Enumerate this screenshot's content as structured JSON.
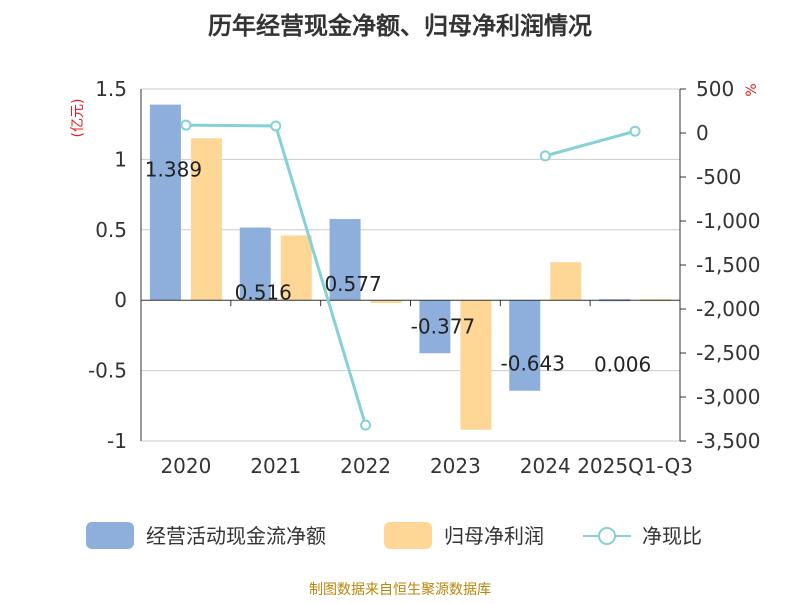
{
  "chart_data": {
    "type": "bar+line",
    "title": "历年经营现金净额、归母净利润情况",
    "categories": [
      "2020",
      "2021",
      "2022",
      "2023",
      "2024",
      "2025Q1-Q3"
    ],
    "left_axis": {
      "unit": "(亿元)",
      "ylim": [
        -1,
        1.5
      ],
      "ticks": [
        1.5,
        1,
        0.5,
        0,
        -0.5,
        -1
      ],
      "tick_labels": [
        "1.5",
        "1",
        "0.5",
        "0",
        "-0.5",
        "-1"
      ]
    },
    "right_axis": {
      "unit": "%",
      "ylim": [
        -3500,
        500
      ],
      "ticks": [
        500,
        0,
        -500,
        -1000,
        -1500,
        -2000,
        -2500,
        -3000,
        -3500
      ],
      "tick_labels": [
        "500",
        "0",
        "-500",
        "-1,000",
        "-1,500",
        "-2,000",
        "-2,500",
        "-3,000",
        "-3,500"
      ]
    },
    "series": [
      {
        "name": "经营活动现金流净额",
        "type": "bar",
        "axis": "left",
        "color": "#8eaedb",
        "values": [
          1.389,
          0.516,
          0.577,
          -0.377,
          -0.643,
          0.006
        ],
        "labels": [
          "1.389",
          "0.516",
          "0.577",
          "-0.377",
          "-0.643",
          "0.006"
        ]
      },
      {
        "name": "归母净利润",
        "type": "bar",
        "axis": "left",
        "color": "#fed797",
        "values": [
          1.15,
          0.46,
          -0.02,
          -0.92,
          0.27,
          0.01
        ]
      },
      {
        "name": "净现比",
        "type": "line",
        "axis": "right",
        "color": "#85d1d6",
        "values": [
          90,
          80,
          -3320,
          null,
          -260,
          20
        ]
      }
    ]
  },
  "source": "制图数据来自恒生聚源数据库"
}
